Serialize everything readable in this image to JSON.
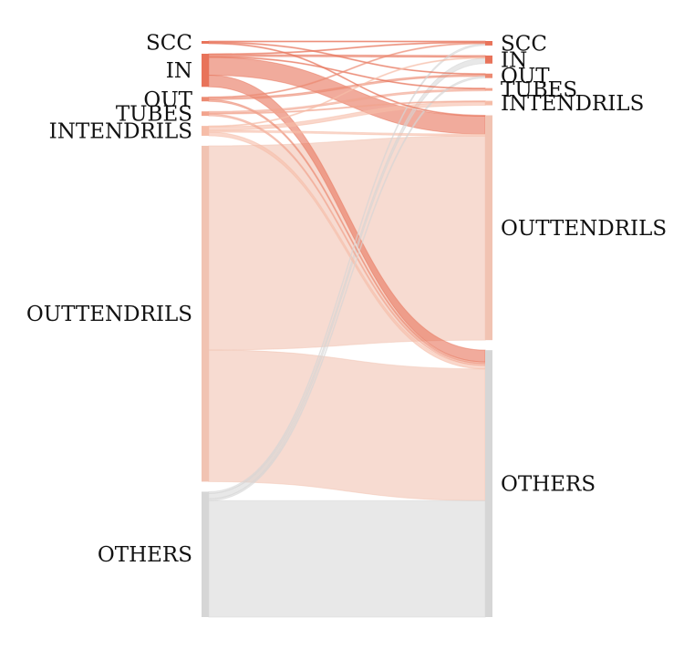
{
  "chart_data": {
    "type": "sankey",
    "left_nodes": [
      {
        "id": "SCC",
        "label": "SCC",
        "color": "#e8735a"
      },
      {
        "id": "IN",
        "label": "IN",
        "color": "#e8735a"
      },
      {
        "id": "OUT",
        "label": "OUT",
        "color": "#ec8a72"
      },
      {
        "id": "TUBES",
        "label": "TUBES",
        "color": "#f2a48e"
      },
      {
        "id": "INTENDRILS",
        "label": "INTENDRILS",
        "color": "#f6bda8"
      },
      {
        "id": "OUTTENDRILS",
        "label": "OUTTENDRILS",
        "color": "#f1c3b2"
      },
      {
        "id": "OTHERS",
        "label": "OTHERS",
        "color": "#d6d6d6"
      }
    ],
    "right_nodes": [
      {
        "id": "SCC",
        "label": "SCC",
        "color": "#e8735a"
      },
      {
        "id": "IN",
        "label": "IN",
        "color": "#e8735a"
      },
      {
        "id": "OUT",
        "label": "OUT",
        "color": "#ec8a72"
      },
      {
        "id": "TUBES",
        "label": "TUBES",
        "color": "#f2a48e"
      },
      {
        "id": "INTENDRILS",
        "label": "INTENDRILS",
        "color": "#f6bda8"
      },
      {
        "id": "OUTTENDRILS",
        "label": "OUTTENDRILS",
        "color": "#f1c3b2"
      },
      {
        "id": "OTHERS",
        "label": "OTHERS",
        "color": "#d6d6d6"
      }
    ],
    "flows": [
      {
        "source": "SCC",
        "target": "SCC",
        "value": 1
      },
      {
        "source": "SCC",
        "target": "OUT",
        "value": 1
      },
      {
        "source": "SCC",
        "target": "OUTTENDRILS",
        "value": 1
      },
      {
        "source": "IN",
        "target": "SCC",
        "value": 1
      },
      {
        "source": "IN",
        "target": "IN",
        "value": 2
      },
      {
        "source": "IN",
        "target": "TUBES",
        "value": 1
      },
      {
        "source": "IN",
        "target": "OUTTENDRILS",
        "value": 20
      },
      {
        "source": "IN",
        "target": "OTHERS",
        "value": 13
      },
      {
        "source": "OUT",
        "target": "SCC",
        "value": 1
      },
      {
        "source": "OUT",
        "target": "OUT",
        "value": 2
      },
      {
        "source": "OUT",
        "target": "OTHERS",
        "value": 2
      },
      {
        "source": "TUBES",
        "target": "TUBES",
        "value": 2
      },
      {
        "source": "TUBES",
        "target": "INTENDRILS",
        "value": 1
      },
      {
        "source": "TUBES",
        "target": "OTHERS",
        "value": 2
      },
      {
        "source": "INTENDRILS",
        "target": "IN",
        "value": 1
      },
      {
        "source": "INTENDRILS",
        "target": "INTENDRILS",
        "value": 4
      },
      {
        "source": "INTENDRILS",
        "target": "OUTTENDRILS",
        "value": 2
      },
      {
        "source": "INTENDRILS",
        "target": "OTHERS",
        "value": 4
      },
      {
        "source": "OUTTENDRILS",
        "target": "OUTTENDRILS",
        "value": 228
      },
      {
        "source": "OUTTENDRILS",
        "target": "OTHERS",
        "value": 147
      },
      {
        "source": "OTHERS",
        "target": "SCC",
        "value": 2
      },
      {
        "source": "OTHERS",
        "target": "IN",
        "value": 6
      },
      {
        "source": "OTHERS",
        "target": "OUT",
        "value": 2
      },
      {
        "source": "OTHERS",
        "target": "OTHERS",
        "value": 130
      }
    ]
  }
}
